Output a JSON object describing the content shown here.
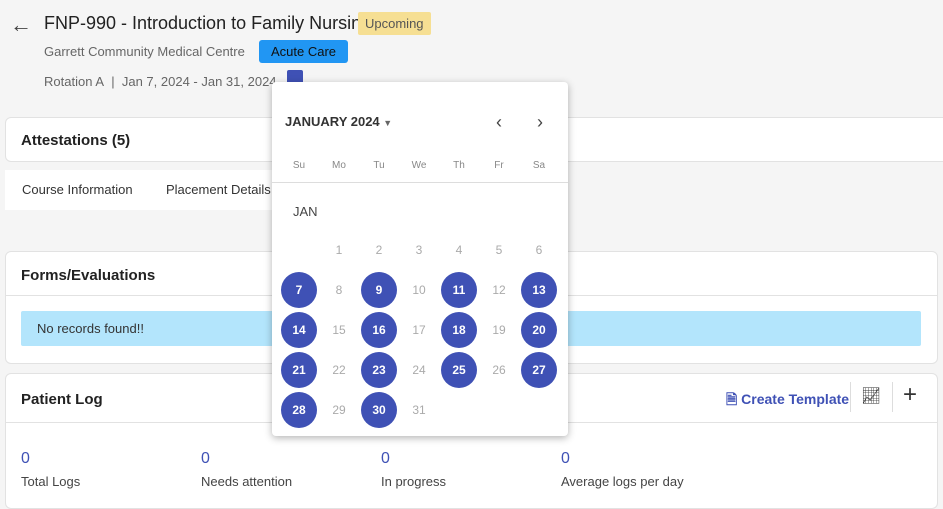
{
  "header": {
    "title": "FNP-990 - Introduction to Family Nursing",
    "status": "Upcoming",
    "site": "Garrett Community Medical Centre",
    "unit": "Acute Care",
    "rotation": "Rotation A",
    "separator": "|",
    "dates": "Jan 7, 2024 - Jan 31, 2024"
  },
  "attestations": {
    "title": "Attestations (5)"
  },
  "tabs": [
    {
      "label": "Course Information"
    },
    {
      "label": "Placement Details"
    }
  ],
  "forms": {
    "title": "Forms/Evaluations",
    "empty": "No records found!!"
  },
  "patient_log": {
    "title": "Patient Log",
    "create_template": "Create Template",
    "stats": [
      {
        "value": "0",
        "label": "Total Logs"
      },
      {
        "value": "0",
        "label": "Needs attention"
      },
      {
        "value": "0",
        "label": "In progress"
      },
      {
        "value": "0",
        "label": "Average logs per day"
      }
    ]
  },
  "calendar": {
    "month_label": "JANUARY 2024",
    "section": "JAN",
    "weekdays": [
      "Su",
      "Mo",
      "Tu",
      "We",
      "Th",
      "Fr",
      "Sa"
    ],
    "start_offset": 1,
    "days": 31,
    "selected": [
      7,
      9,
      11,
      13,
      14,
      16,
      18,
      20,
      21,
      23,
      25,
      27,
      28,
      30
    ],
    "accent": "#3f51b5"
  }
}
